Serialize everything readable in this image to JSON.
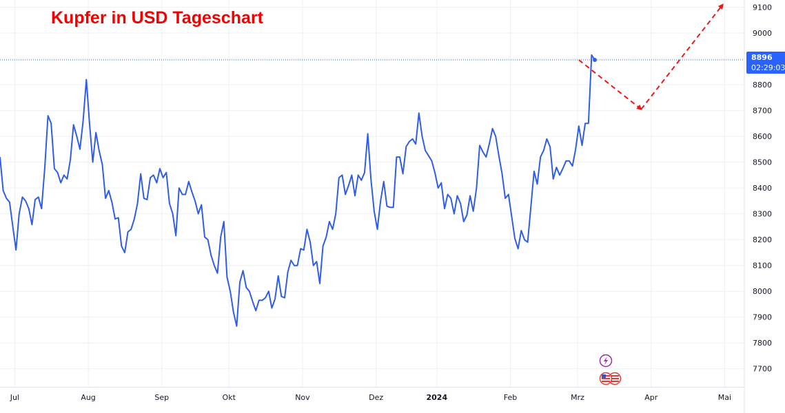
{
  "title": "Kupfer in USD Tageschart",
  "price_label": {
    "price": "8896",
    "countdown": "02:29:03"
  },
  "colors": {
    "line": "#2f5ce8",
    "title": "#f50000",
    "arrow": "#e21b1b",
    "price_tag": "#2962ff",
    "grid": "#eef0f3",
    "axis_text": "#131722"
  },
  "chart_data": {
    "type": "line",
    "title": "Kupfer in USD Tageschart",
    "xlabel": "",
    "ylabel": "",
    "ylim": [
      7630,
      9120
    ],
    "y_ticks": [
      7700,
      7800,
      7900,
      8000,
      8100,
      8200,
      8300,
      8400,
      8500,
      8600,
      8700,
      8800,
      8900,
      9000,
      9100
    ],
    "x_labels": [
      {
        "label": "Jul",
        "index": 4.6
      },
      {
        "label": "Aug",
        "index": 27.6
      },
      {
        "label": "Sep",
        "index": 50.6
      },
      {
        "label": "Okt",
        "index": 71.6
      },
      {
        "label": "Nov",
        "index": 94.6
      },
      {
        "label": "Dez",
        "index": 117.6
      },
      {
        "label": "2024",
        "index": 136.6
      },
      {
        "label": "Feb",
        "index": 159.6
      },
      {
        "label": "Mrz",
        "index": 180.6
      },
      {
        "label": "Apr",
        "index": 203.6
      },
      {
        "label": "Mai",
        "index": 226.6
      }
    ],
    "grid": true,
    "last_price": 8896,
    "series": [
      {
        "values": [
          8520,
          8390,
          8360,
          8345,
          8250,
          8160,
          8300,
          8365,
          8350,
          8320,
          8258,
          8355,
          8365,
          8320,
          8480,
          8680,
          8650,
          8475,
          8460,
          8420,
          8450,
          8435,
          8510,
          8645,
          8600,
          8550,
          8660,
          8820,
          8650,
          8500,
          8615,
          8545,
          8490,
          8360,
          8390,
          8345,
          8280,
          8285,
          8175,
          8150,
          8230,
          8240,
          8280,
          8340,
          8455,
          8360,
          8355,
          8440,
          8450,
          8420,
          8475,
          8440,
          8460,
          8340,
          8300,
          8215,
          8400,
          8375,
          8375,
          8425,
          8385,
          8350,
          8300,
          8335,
          8210,
          8200,
          8140,
          8100,
          8070,
          8210,
          8270,
          8055,
          8000,
          7920,
          7865,
          8035,
          8080,
          8015,
          8000,
          7960,
          7925,
          7965,
          7965,
          7975,
          8000,
          7935,
          7970,
          8060,
          7980,
          7975,
          8075,
          8120,
          8100,
          8100,
          8165,
          8160,
          8240,
          8190,
          8100,
          8115,
          8030,
          8175,
          8210,
          8270,
          8240,
          8300,
          8440,
          8450,
          8375,
          8410,
          8450,
          8370,
          8450,
          8430,
          8460,
          8610,
          8435,
          8310,
          8240,
          8350,
          8425,
          8330,
          8325,
          8325,
          8520,
          8520,
          8455,
          8560,
          8580,
          8590,
          8570,
          8690,
          8600,
          8545,
          8525,
          8505,
          8460,
          8400,
          8420,
          8320,
          8375,
          8360,
          8300,
          8370,
          8340,
          8270,
          8295,
          8370,
          8310,
          8400,
          8565,
          8540,
          8520,
          8570,
          8630,
          8600,
          8525,
          8455,
          8360,
          8375,
          8290,
          8205,
          8165,
          8235,
          8200,
          8190,
          8325,
          8465,
          8415,
          8520,
          8545,
          8590,
          8560,
          8435,
          8480,
          8450,
          8475,
          8505,
          8505,
          8485,
          8550,
          8640,
          8565,
          8650,
          8650,
          8915,
          8896
        ]
      }
    ],
    "forecast": {
      "style": "dashed-arrow",
      "points": [
        {
          "index": 181,
          "value": 8896
        },
        {
          "index": 200.5,
          "value": 8705
        },
        {
          "index": 226,
          "value": 9110
        }
      ]
    }
  },
  "event_icons": [
    "lightning-icon",
    "us-flag-icon",
    "us-flag-icon"
  ]
}
